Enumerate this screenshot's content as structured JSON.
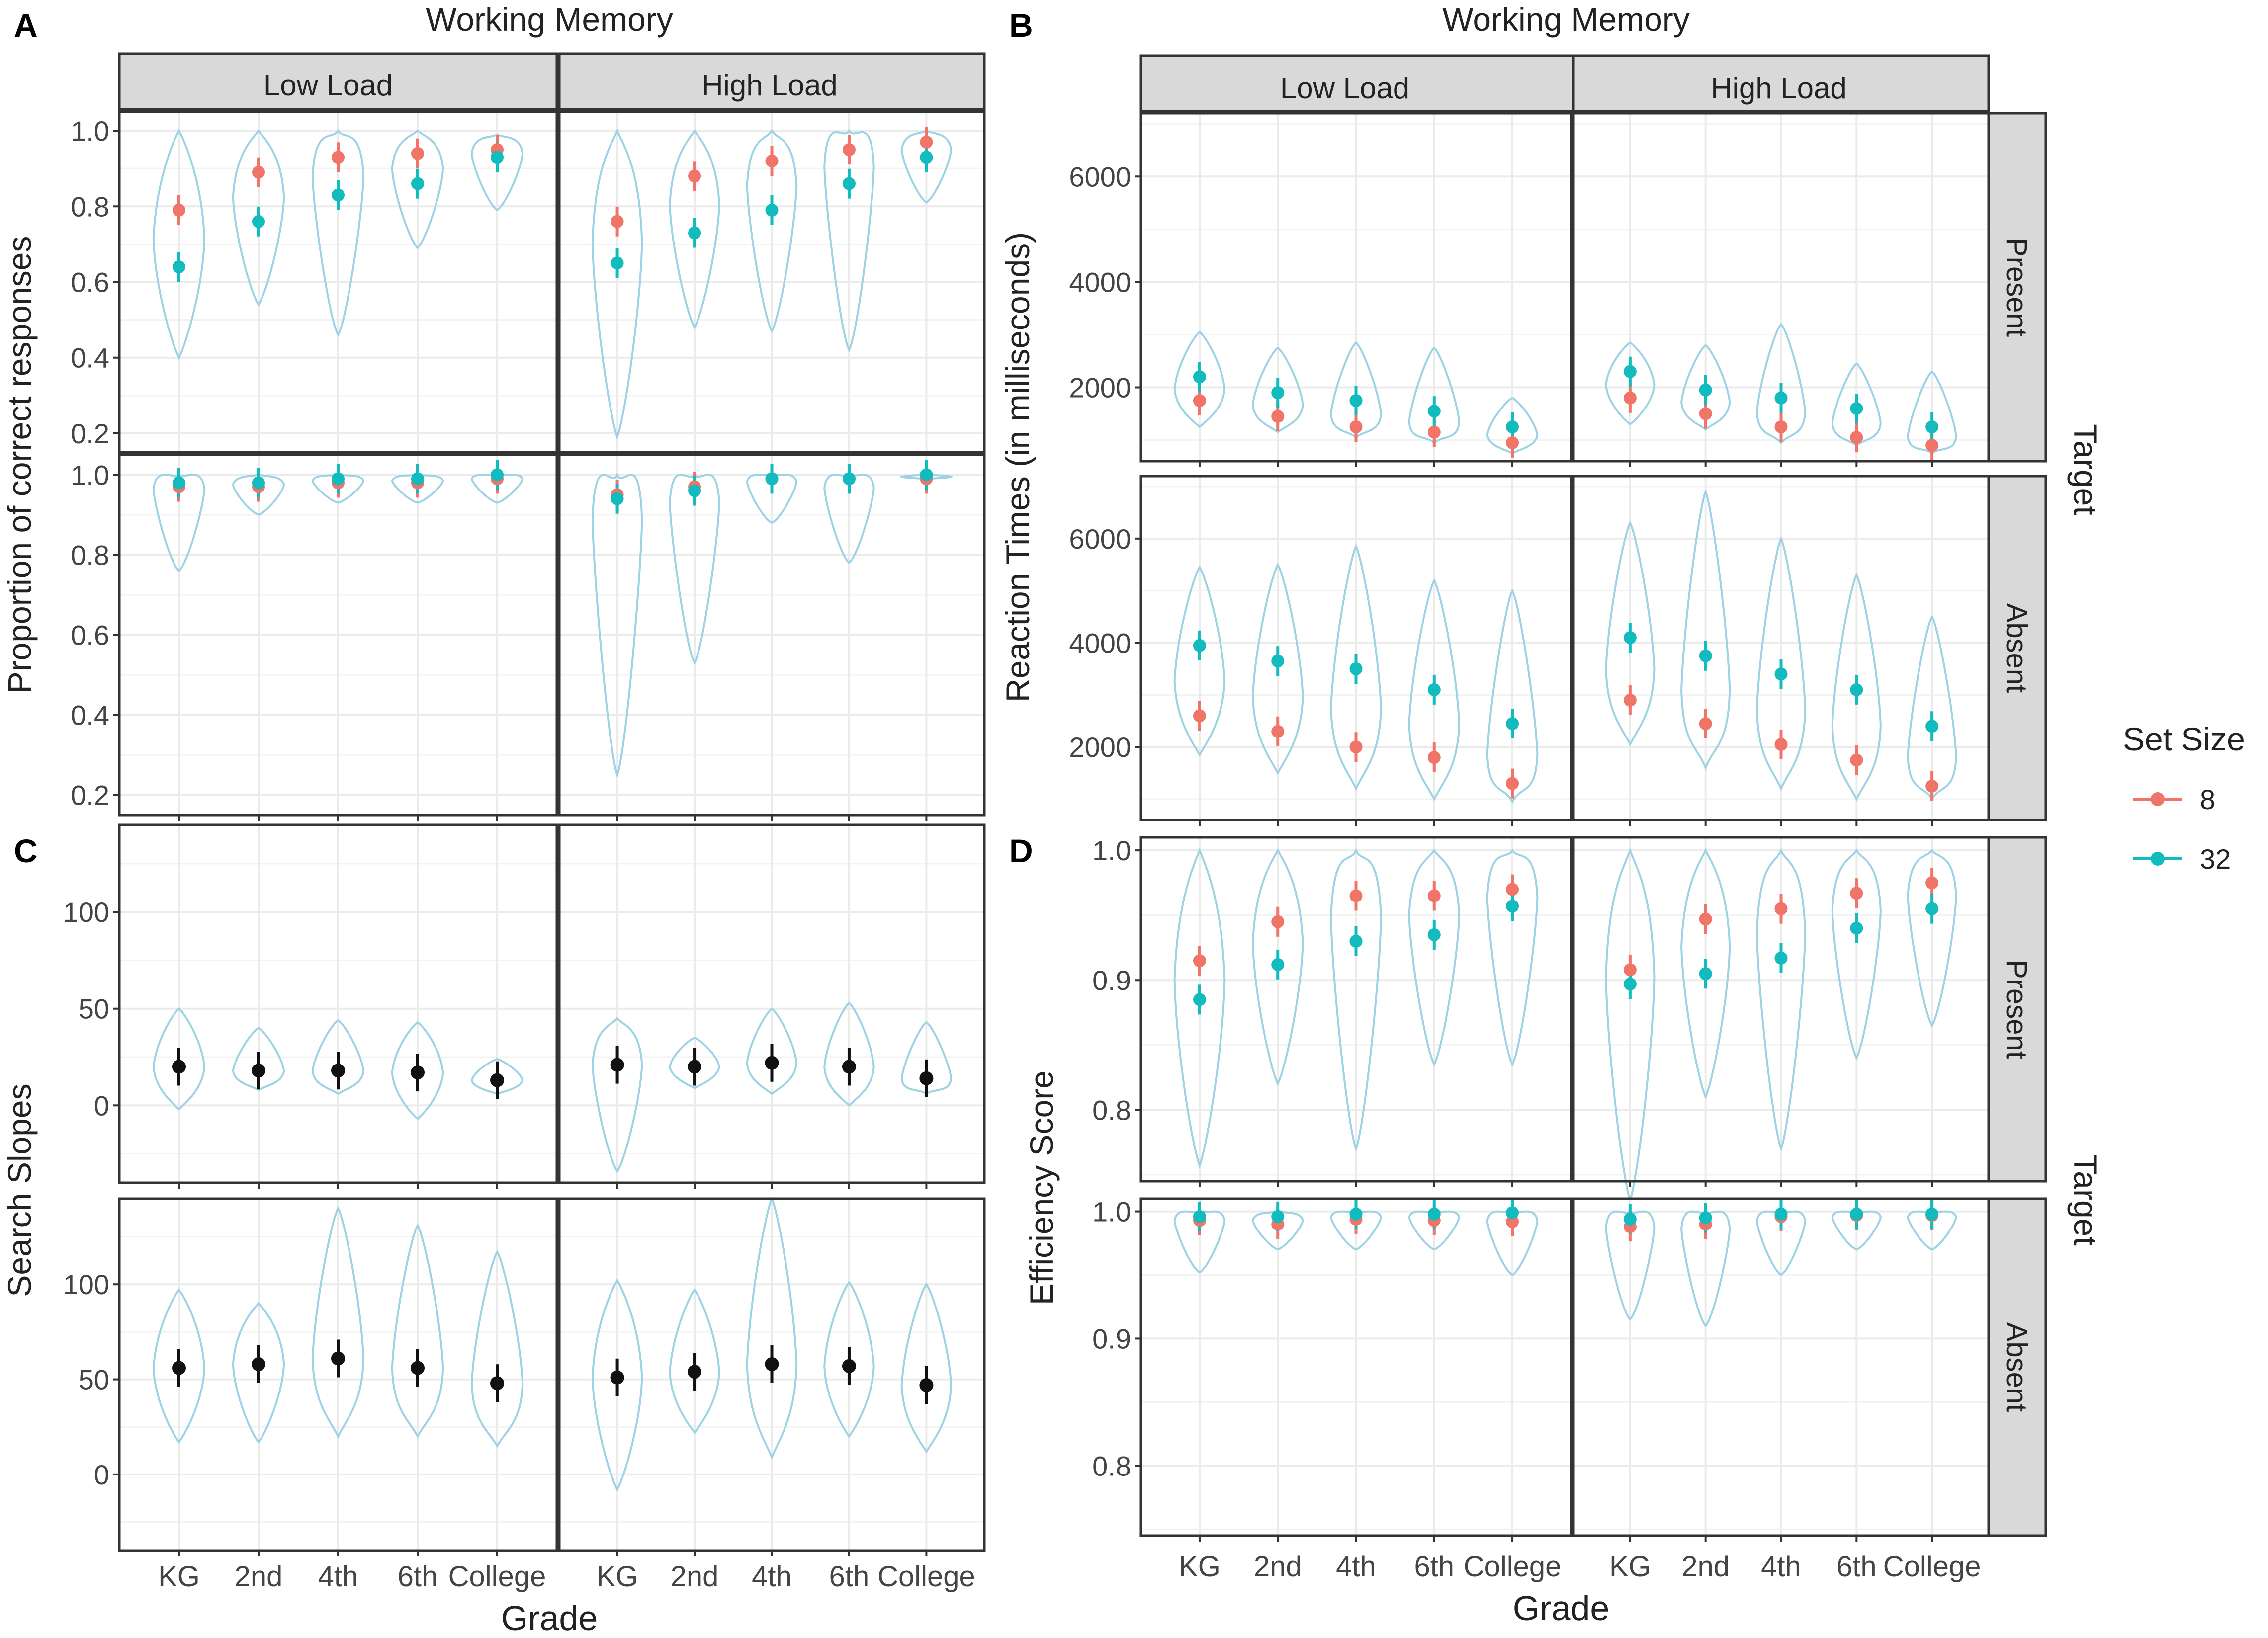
{
  "colors": {
    "set8": "#f07468",
    "set32": "#12bcbe",
    "violin": "#9dd3e4",
    "slope": "#111111",
    "strip": "#d9d9d9",
    "grid": "#ebebeb"
  },
  "figure": {
    "grades": [
      "KG",
      "2nd",
      "4th",
      "6th",
      "College"
    ],
    "x_axis_title": "Grade",
    "wm_title": "Working Memory",
    "load_strips": [
      "Low Load",
      "High Load"
    ],
    "target_title": "Target",
    "target_strips": [
      "Present",
      "Absent"
    ],
    "legend": {
      "title": "Set Size",
      "items": [
        {
          "label": "8",
          "color_key": "set8"
        },
        {
          "label": "32",
          "color_key": "set32"
        }
      ]
    }
  },
  "chart_data": [
    {
      "panel": "A",
      "type": "violin-pointrange",
      "ylabel": "Proportion of correct responses",
      "ylim": [
        0.15,
        1.05
      ],
      "ticks": [
        0.2,
        0.4,
        0.6,
        0.8,
        1.0
      ],
      "tick_labels": [
        "0.2",
        "0.4",
        "0.6",
        "0.8",
        "1.0"
      ],
      "rows": [
        {
          "label": "Present",
          "facets": [
            {
              "load": "Low Load",
              "s8": [
                0.79,
                0.89,
                0.93,
                0.94,
                0.95
              ],
              "s32": [
                0.64,
                0.76,
                0.83,
                0.86,
                0.93
              ],
              "violin_min": [
                0.4,
                0.54,
                0.46,
                0.69,
                0.79
              ],
              "violin_max": [
                1.0,
                1.0,
                1.0,
                1.0,
                0.99
              ]
            },
            {
              "load": "High Load",
              "s8": [
                0.76,
                0.88,
                0.92,
                0.95,
                0.97
              ],
              "s32": [
                0.65,
                0.73,
                0.79,
                0.86,
                0.93
              ],
              "violin_min": [
                0.19,
                0.48,
                0.47,
                0.42,
                0.81
              ],
              "violin_max": [
                1.0,
                1.0,
                1.0,
                1.0,
                1.0
              ]
            }
          ]
        },
        {
          "label": "Absent",
          "facets": [
            {
              "load": "Low Load",
              "s8": [
                0.97,
                0.97,
                0.98,
                0.98,
                0.99
              ],
              "s32": [
                0.98,
                0.98,
                0.99,
                0.99,
                1.0
              ],
              "violin_min": [
                0.76,
                0.9,
                0.93,
                0.93,
                0.93
              ],
              "violin_max": [
                1.0,
                1.0,
                1.0,
                1.0,
                1.0
              ]
            },
            {
              "load": "High Load",
              "s8": [
                0.95,
                0.97,
                0.99,
                0.99,
                0.99
              ],
              "s32": [
                0.94,
                0.96,
                0.99,
                0.99,
                1.0
              ],
              "violin_min": [
                0.25,
                0.53,
                0.88,
                0.78,
                0.99
              ],
              "violin_max": [
                1.0,
                1.0,
                1.0,
                1.0,
                1.0
              ]
            }
          ]
        }
      ]
    },
    {
      "panel": "B",
      "type": "violin-pointrange",
      "ylabel": "Reaction Times (in milliseconds)",
      "ylim": [
        600,
        7200
      ],
      "ticks": [
        2000,
        4000,
        6000
      ],
      "tick_labels": [
        "2000",
        "4000",
        "6000"
      ],
      "rows": [
        {
          "label": "Present",
          "facets": [
            {
              "load": "Low Load",
              "s8": [
                1750,
                1450,
                1250,
                1150,
                950
              ],
              "s32": [
                2200,
                1900,
                1750,
                1550,
                1250
              ],
              "violin_min": [
                1250,
                1150,
                1050,
                950,
                750
              ],
              "violin_max": [
                3050,
                2750,
                2850,
                2750,
                1800
              ]
            },
            {
              "load": "High Load",
              "s8": [
                1800,
                1500,
                1250,
                1050,
                900
              ],
              "s32": [
                2300,
                1950,
                1800,
                1600,
                1250
              ],
              "violin_min": [
                1300,
                1200,
                950,
                900,
                750
              ],
              "violin_max": [
                2850,
                2800,
                3200,
                2450,
                2300
              ]
            }
          ]
        },
        {
          "label": "Absent",
          "facets": [
            {
              "load": "Low Load",
              "s8": [
                2600,
                2300,
                2000,
                1800,
                1300
              ],
              "s32": [
                3950,
                3650,
                3500,
                3100,
                2450
              ],
              "violin_min": [
                1850,
                1500,
                1200,
                1000,
                950
              ],
              "violin_max": [
                5450,
                5500,
                5850,
                5200,
                5000
              ]
            },
            {
              "load": "High Load",
              "s8": [
                2900,
                2450,
                2050,
                1750,
                1250
              ],
              "s32": [
                4100,
                3750,
                3400,
                3100,
                2400
              ],
              "violin_min": [
                2050,
                1600,
                1200,
                1000,
                1000
              ],
              "violin_max": [
                6300,
                6900,
                6000,
                5300,
                4500
              ]
            }
          ]
        }
      ]
    },
    {
      "panel": "C",
      "type": "violin-pointrange",
      "ylabel": "Search Slopes",
      "ylim": [
        -40,
        145
      ],
      "ticks": [
        0,
        50,
        100
      ],
      "tick_labels": [
        "0",
        "50",
        "100"
      ],
      "rows": [
        {
          "label": "Present",
          "facets": [
            {
              "load": "Low Load",
              "slope": [
                20,
                18,
                18,
                17,
                13
              ],
              "violin_min": [
                -2,
                8,
                6,
                -7,
                6
              ],
              "violin_max": [
                50,
                40,
                44,
                43,
                24
              ]
            },
            {
              "load": "High Load",
              "slope": [
                21,
                20,
                22,
                20,
                14
              ],
              "violin_min": [
                -34,
                9,
                6,
                0,
                6
              ],
              "violin_max": [
                45,
                35,
                50,
                53,
                43
              ]
            }
          ]
        },
        {
          "label": "Absent",
          "facets": [
            {
              "load": "Low Load",
              "slope": [
                56,
                58,
                61,
                56,
                48
              ],
              "violin_min": [
                17,
                17,
                20,
                20,
                15
              ],
              "violin_max": [
                97,
                90,
                140,
                131,
                117
              ]
            },
            {
              "load": "High Load",
              "slope": [
                51,
                54,
                58,
                57,
                47
              ],
              "violin_min": [
                -8,
                22,
                9,
                20,
                12
              ],
              "violin_max": [
                102,
                97,
                145,
                101,
                100
              ]
            }
          ]
        }
      ]
    },
    {
      "panel": "D",
      "type": "violin-pointrange",
      "ylabel": "Efficiency Score",
      "ylim": [
        0.745,
        1.01
      ],
      "ticks": [
        0.8,
        0.9,
        1.0
      ],
      "tick_labels": [
        "0.8",
        "0.9",
        "1.0"
      ],
      "rows": [
        {
          "label": "Present",
          "facets": [
            {
              "load": "Low Load",
              "s8": [
                0.915,
                0.945,
                0.965,
                0.965,
                0.97
              ],
              "s32": [
                0.885,
                0.912,
                0.93,
                0.935,
                0.957
              ],
              "violin_min": [
                0.757,
                0.82,
                0.77,
                0.835,
                0.835
              ],
              "violin_max": [
                1.0,
                1.0,
                1.0,
                1.0,
                1.0
              ]
            },
            {
              "load": "High Load",
              "s8": [
                0.908,
                0.947,
                0.955,
                0.967,
                0.975
              ],
              "s32": [
                0.897,
                0.905,
                0.917,
                0.94,
                0.955
              ],
              "violin_min": [
                0.73,
                0.81,
                0.77,
                0.84,
                0.865
              ],
              "violin_max": [
                1.0,
                1.0,
                1.0,
                1.0,
                1.0
              ]
            }
          ]
        },
        {
          "label": "Absent",
          "facets": [
            {
              "load": "Low Load",
              "s8": [
                0.993,
                0.99,
                0.994,
                0.993,
                0.992
              ],
              "s32": [
                0.996,
                0.996,
                0.998,
                0.998,
                0.999
              ],
              "violin_min": [
                0.952,
                0.97,
                0.97,
                0.97,
                0.95
              ],
              "violin_max": [
                1.0,
                1.0,
                1.0,
                1.0,
                1.0
              ]
            },
            {
              "load": "High Load",
              "s8": [
                0.988,
                0.99,
                0.996,
                0.997,
                0.997
              ],
              "s32": [
                0.994,
                0.995,
                0.998,
                0.998,
                0.998
              ],
              "violin_min": [
                0.915,
                0.91,
                0.95,
                0.97,
                0.97
              ],
              "violin_max": [
                1.0,
                1.0,
                1.0,
                1.0,
                1.0
              ]
            }
          ]
        }
      ]
    }
  ]
}
